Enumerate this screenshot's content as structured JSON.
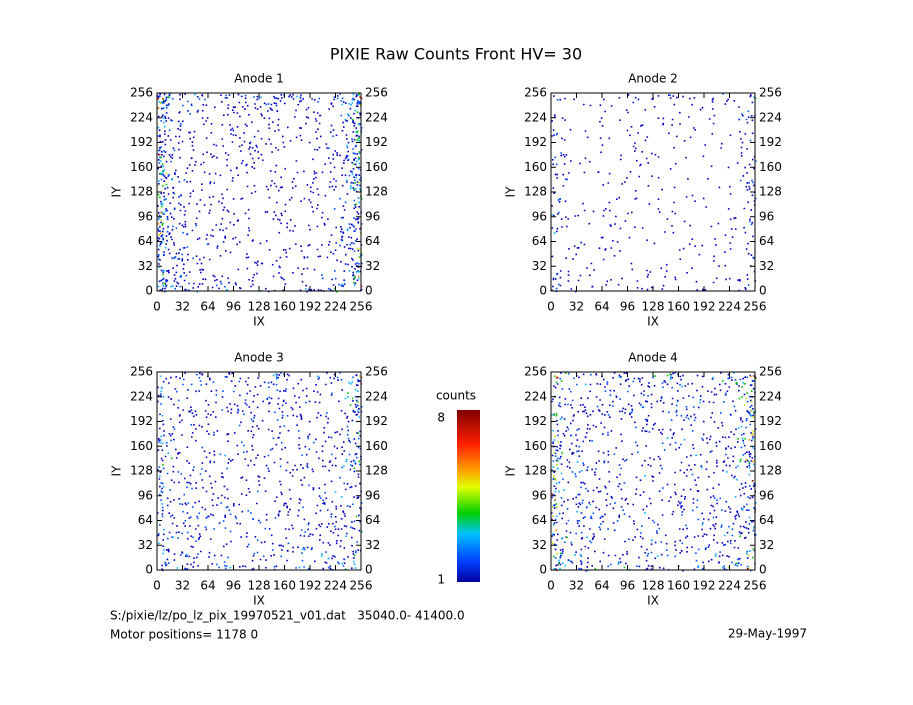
{
  "title": "PIXIE Raw Counts Front HV= 30",
  "chart_data": [
    {
      "type": "heatmap",
      "title": "Anode 1",
      "xlabel": "IX",
      "ylabel": "IY",
      "xlim": [
        0,
        256
      ],
      "ylim": [
        0,
        256
      ],
      "xticks": [
        0,
        32,
        64,
        96,
        128,
        160,
        192,
        224,
        256
      ],
      "yticks": [
        0,
        32,
        64,
        96,
        128,
        160,
        192,
        224,
        256
      ]
    },
    {
      "type": "heatmap",
      "title": "Anode 2",
      "xlabel": "IX",
      "ylabel": "IY",
      "xlim": [
        0,
        256
      ],
      "ylim": [
        0,
        256
      ],
      "xticks": [
        0,
        32,
        64,
        96,
        128,
        160,
        192,
        224,
        256
      ],
      "yticks": [
        0,
        32,
        64,
        96,
        128,
        160,
        192,
        224,
        256
      ]
    },
    {
      "type": "heatmap",
      "title": "Anode 3",
      "xlabel": "IX",
      "ylabel": "IY",
      "xlim": [
        0,
        256
      ],
      "ylim": [
        0,
        256
      ],
      "xticks": [
        0,
        32,
        64,
        96,
        128,
        160,
        192,
        224,
        256
      ],
      "yticks": [
        0,
        32,
        64,
        96,
        128,
        160,
        192,
        224,
        256
      ]
    },
    {
      "type": "heatmap",
      "title": "Anode 4",
      "xlabel": "IX",
      "ylabel": "IY",
      "xlim": [
        0,
        256
      ],
      "ylim": [
        0,
        256
      ],
      "xticks": [
        0,
        32,
        64,
        96,
        128,
        160,
        192,
        224,
        256
      ],
      "yticks": [
        0,
        32,
        64,
        96,
        128,
        160,
        192,
        224,
        256
      ]
    }
  ],
  "colorbar": {
    "label": "counts",
    "lim": [
      1,
      8
    ],
    "ticks": [
      1,
      8
    ]
  },
  "footer": {
    "file": "S:/pixie/lz/po_lz_pix_19970521_v01.dat   35040.0- 41400.0",
    "motor": "Motor positions= 1178 0",
    "date": "29-May-1997"
  }
}
